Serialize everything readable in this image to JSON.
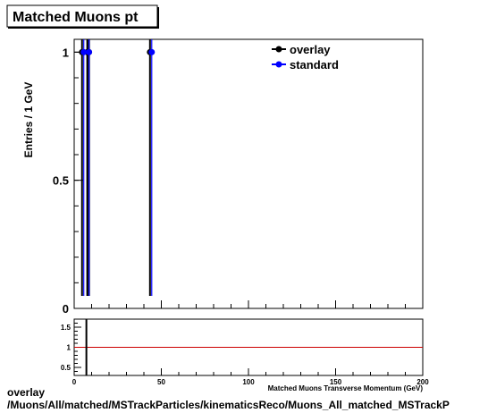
{
  "title": "Matched Muons pt",
  "caption": {
    "line1": "overlay",
    "line2": "/Muons/All/matched/MSTrackParticles/kinematicsReco/Muons_All_matched_MSTrackP"
  },
  "chart_data": [
    {
      "type": "line",
      "ylabel": "Entries / 1 GeV",
      "xlim": [
        0,
        200
      ],
      "ylim": [
        0,
        1.05
      ],
      "yticks": [
        0,
        0.5,
        1
      ],
      "ytick_labels": [
        "0",
        "0.5",
        "1"
      ],
      "legend_position": "top-right",
      "series": [
        {
          "name": "overlay",
          "color": "#000000",
          "x": [
            4.5,
            7.5,
            8.5,
            43.5
          ],
          "y": [
            1,
            1,
            1,
            1
          ]
        },
        {
          "name": "standard",
          "color": "#0000ff",
          "x": [
            5.5,
            8.5,
            44.5
          ],
          "y": [
            1,
            1,
            1
          ]
        }
      ]
    },
    {
      "type": "line",
      "xlabel": "Matched Muons Transverse Momentum (GeV)",
      "xlim": [
        0,
        200
      ],
      "ylim": [
        0.3,
        1.7
      ],
      "xticks": [
        0,
        50,
        100,
        150,
        200
      ],
      "xtick_labels": [
        "0",
        "50",
        "100",
        "150",
        "200"
      ],
      "yticks": [
        0.5,
        1,
        1.5
      ],
      "ytick_labels": [
        "0.5",
        "1",
        "1.5"
      ],
      "reference_line": {
        "y": 1,
        "color": "#cc0000"
      },
      "marker_x": 7
    }
  ]
}
